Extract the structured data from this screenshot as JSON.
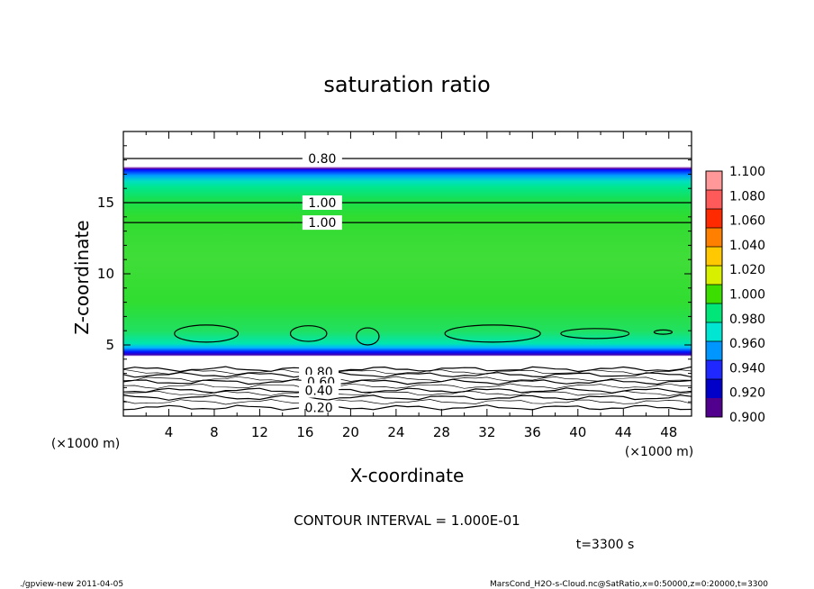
{
  "chart_data": {
    "type": "heatmap",
    "title": "saturation ratio",
    "xlabel": "X-coordinate",
    "ylabel": "Z-coordinate",
    "x_unit_left": "(×1000 m)",
    "x_unit_right": "(×1000 m)",
    "xlim": [
      0,
      50
    ],
    "ylim": [
      0,
      20
    ],
    "x_ticks": [
      "4",
      "8",
      "12",
      "16",
      "20",
      "24",
      "28",
      "32",
      "36",
      "40",
      "44",
      "48"
    ],
    "y_ticks": [
      "5",
      "10",
      "15"
    ],
    "colorbar": {
      "levels": [
        "1.100",
        "1.080",
        "1.060",
        "1.040",
        "1.020",
        "1.000",
        "0.980",
        "0.960",
        "0.940",
        "0.920",
        "0.900"
      ],
      "colors": [
        "#ff9999",
        "#ff5a5a",
        "#ff2a00",
        "#ff7f00",
        "#ffc800",
        "#d8f000",
        "#3cdd00",
        "#00e678",
        "#00e6d2",
        "#0096ff",
        "#1e28ff",
        "#0000c8",
        "#50008c"
      ]
    },
    "contour_labels": [
      {
        "text": "0.80",
        "x": 17.5,
        "y": 18.1
      },
      {
        "text": "1.00",
        "x": 17.5,
        "y": 15.0
      },
      {
        "text": "1.00",
        "x": 17.5,
        "y": 13.6
      },
      {
        "text": "0.80",
        "x": 17.2,
        "y": 3.1
      },
      {
        "text": "0.60",
        "x": 17.4,
        "y": 2.4
      },
      {
        "text": "0.40",
        "x": 17.2,
        "y": 1.8
      },
      {
        "text": "0.20",
        "x": 17.2,
        "y": 0.6
      }
    ],
    "contour_interval": "CONTOUR INTERVAL = 1.000E-01",
    "time": "t=3300 s"
  },
  "footer": {
    "left": "./gpview-new   2011-04-05",
    "right": "MarsCond_H2O-s-Cloud.nc@SatRatio,x=0:50000,z=0:20000,t=3300"
  }
}
